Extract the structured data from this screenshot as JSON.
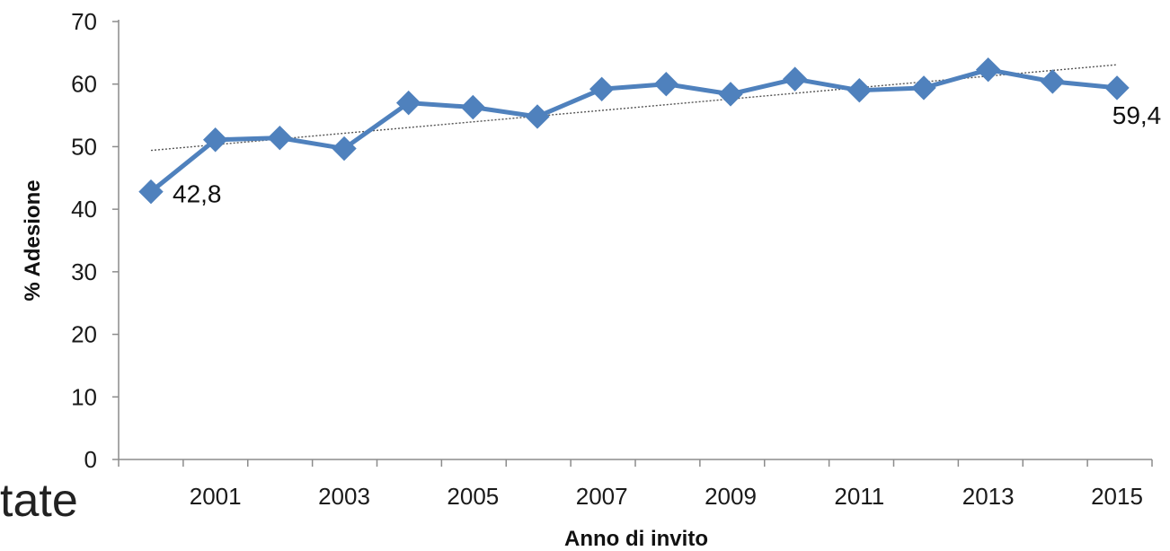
{
  "chart_data": {
    "type": "line",
    "xlabel": "Anno di invito",
    "ylabel": "% Adesione",
    "ylim": [
      0,
      70
    ],
    "yticks": [
      0,
      10,
      20,
      30,
      40,
      50,
      60,
      70
    ],
    "xlim": [
      2000,
      2015
    ],
    "xticks": [
      2001,
      2003,
      2005,
      2007,
      2009,
      2011,
      2013,
      2015
    ],
    "grid": false,
    "legend": "none",
    "series": [
      {
        "color": "#4f81bd",
        "marker": "diamond",
        "x": [
          2000,
          2001,
          2002,
          2003,
          2004,
          2005,
          2006,
          2007,
          2008,
          2009,
          2010,
          2011,
          2012,
          2013,
          2014,
          2015
        ],
        "values": [
          42.8,
          51.1,
          51.4,
          49.7,
          57.0,
          56.3,
          54.8,
          59.2,
          60.0,
          58.4,
          60.8,
          59.0,
          59.4,
          62.3,
          60.4,
          59.4
        ]
      }
    ],
    "trendline": {
      "style": "dotted",
      "color": "#555555",
      "from": [
        2000,
        49.4
      ],
      "to": [
        2015,
        63.1
      ]
    },
    "annotations": [
      {
        "x": 2000,
        "y": 42.8,
        "text": "42,8"
      },
      {
        "x": 2015,
        "y": 59.4,
        "text": "59,4"
      }
    ]
  },
  "cutoff_text": "tate"
}
